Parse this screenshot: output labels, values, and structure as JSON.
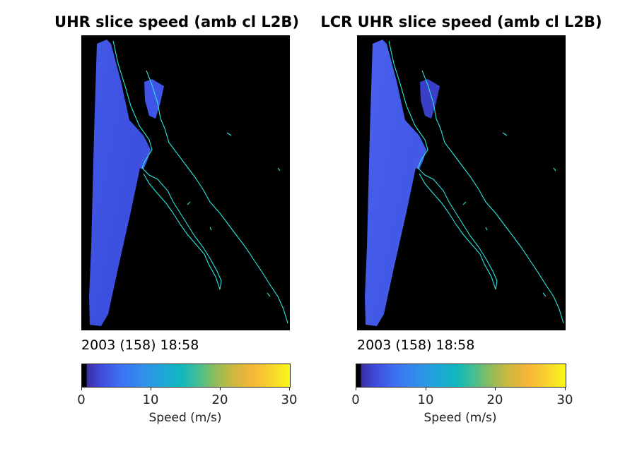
{
  "chart_data": [
    {
      "type": "heatmap",
      "title": "UHR slice speed (amb cl L2B)",
      "timestamp": "2003 (158) 18:58",
      "colorbar": {
        "label": "Speed (m/s)",
        "ticks": [
          "0",
          "10",
          "20",
          "30"
        ],
        "range": [
          0,
          30
        ]
      },
      "dominant_speed_range": [
        4,
        8
      ]
    },
    {
      "type": "heatmap",
      "title": "LCR UHR slice speed (amb cl L2B)",
      "timestamp": "2003 (158) 18:58",
      "colorbar": {
        "label": "Speed (m/s)",
        "ticks": [
          "0",
          "10",
          "20",
          "30"
        ],
        "range": [
          0,
          30
        ]
      },
      "dominant_speed_range": [
        4,
        8
      ]
    }
  ],
  "colors": {
    "swath": "#3e55e8",
    "coast": "#27e8e0",
    "background": "#000000"
  }
}
